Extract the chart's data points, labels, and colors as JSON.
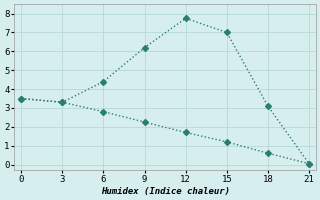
{
  "line1_x": [
    0,
    3,
    6,
    9,
    12,
    15,
    18,
    21
  ],
  "line1_y": [
    3.5,
    3.3,
    4.4,
    6.2,
    7.75,
    7.0,
    3.1,
    0.05
  ],
  "line2_x": [
    0,
    3,
    6,
    9,
    12,
    15,
    18,
    21
  ],
  "line2_y": [
    3.5,
    3.3,
    2.8,
    2.25,
    1.7,
    1.2,
    0.6,
    0.05
  ],
  "color": "#2a7d72",
  "bg_color": "#d6eeee",
  "xlabel": "Humidex (Indice chaleur)",
  "xlim": [
    -0.5,
    21.5
  ],
  "ylim": [
    -0.3,
    8.5
  ],
  "xticks": [
    0,
    3,
    6,
    9,
    12,
    15,
    18,
    21
  ],
  "yticks": [
    0,
    1,
    2,
    3,
    4,
    5,
    6,
    7,
    8
  ],
  "marker": "D",
  "markersize": 3.0,
  "linewidth": 1.0,
  "linestyle": ":"
}
